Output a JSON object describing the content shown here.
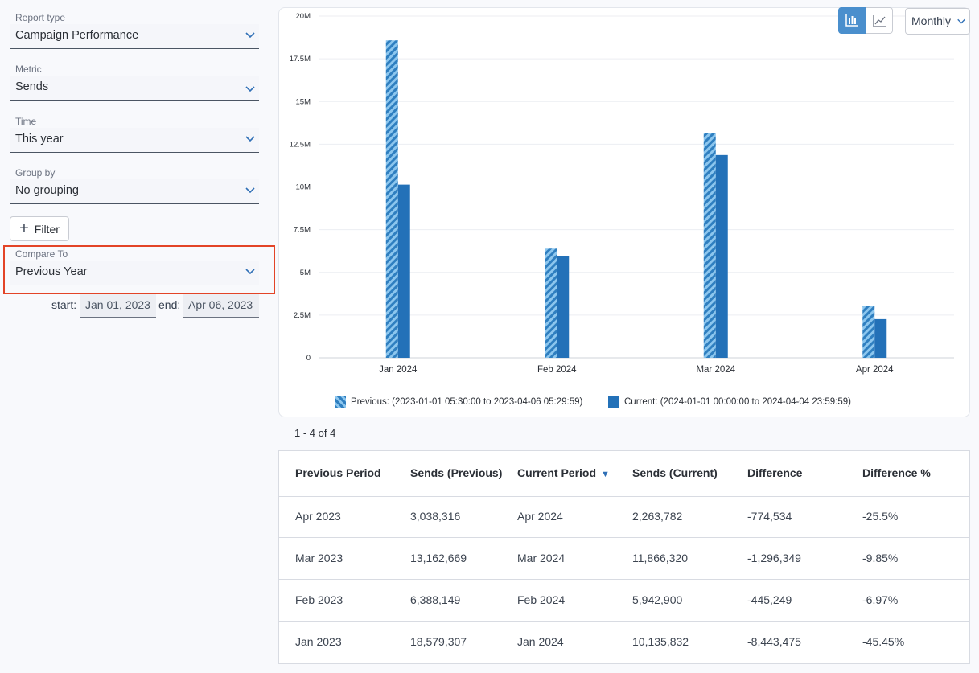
{
  "filters": {
    "report_type": {
      "label": "Report type",
      "value": "Campaign Performance"
    },
    "metric": {
      "label": "Metric",
      "value": "Sends"
    },
    "time": {
      "label": "Time",
      "value": "This year"
    },
    "group_by": {
      "label": "Group by",
      "value": "No grouping"
    },
    "filter_button": "Filter",
    "compare_to": {
      "label": "Compare To",
      "value": "Previous Year"
    },
    "start_label": "start:",
    "start_value": "Jan 01, 2023",
    "end_label": "end:",
    "end_value": "Apr 06, 2023"
  },
  "toolbar": {
    "bar_icon": "bar-chart-icon",
    "line_icon": "line-chart-icon",
    "interval": "Monthly"
  },
  "colors": {
    "previous": "#2f7fc0",
    "current": "#2371b8",
    "accent": "#4a8fcd",
    "highlight": "#e34427"
  },
  "chart_data": {
    "type": "bar",
    "categories": [
      "Jan 2024",
      "Feb 2024",
      "Mar 2024",
      "Apr 2024"
    ],
    "series": [
      {
        "name": "Previous: (2023-01-01 05:30:00 to 2023-04-06 05:29:59)",
        "values": [
          18579307,
          6388149,
          13162669,
          3038316
        ],
        "pattern": "striped"
      },
      {
        "name": "Current: (2024-01-01 00:00:00 to 2024-04-04 23:59:59)",
        "values": [
          10135832,
          5942900,
          11866320,
          2263782
        ],
        "pattern": "solid"
      }
    ],
    "ylim": [
      0,
      20000000
    ],
    "yticks": [
      {
        "v": 0,
        "label": "0"
      },
      {
        "v": 2500000,
        "label": "2.5M"
      },
      {
        "v": 5000000,
        "label": "5M"
      },
      {
        "v": 7500000,
        "label": "7.5M"
      },
      {
        "v": 10000000,
        "label": "10M"
      },
      {
        "v": 12500000,
        "label": "12.5M"
      },
      {
        "v": 15000000,
        "label": "15M"
      },
      {
        "v": 17500000,
        "label": "17.5M"
      },
      {
        "v": 20000000,
        "label": "20M"
      }
    ],
    "grid": true,
    "legend_position": "bottom"
  },
  "range_text": "1 - 4 of 4",
  "table": {
    "columns": [
      "Previous Period",
      "Sends (Previous)",
      "Current Period",
      "Sends (Current)",
      "Difference",
      "Difference %"
    ],
    "sort_indicator": "▼",
    "rows": [
      [
        "Apr 2023",
        "3,038,316",
        "Apr 2024",
        "2,263,782",
        "-774,534",
        "-25.5%"
      ],
      [
        "Mar 2023",
        "13,162,669",
        "Mar 2024",
        "11,866,320",
        "-1,296,349",
        "-9.85%"
      ],
      [
        "Feb 2023",
        "6,388,149",
        "Feb 2024",
        "5,942,900",
        "-445,249",
        "-6.97%"
      ],
      [
        "Jan 2023",
        "18,579,307",
        "Jan 2024",
        "10,135,832",
        "-8,443,475",
        "-45.45%"
      ]
    ]
  }
}
